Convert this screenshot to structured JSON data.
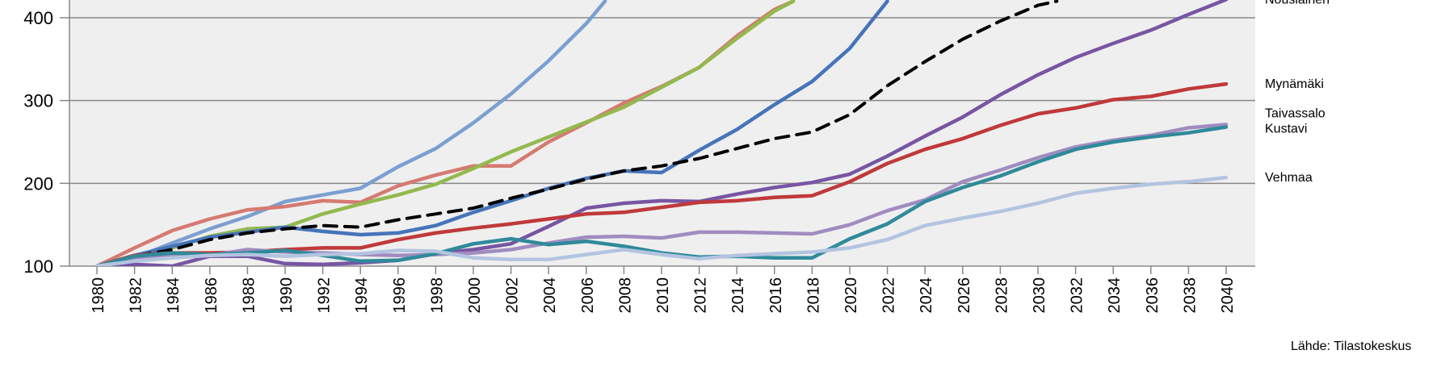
{
  "chart_data": {
    "type": "line",
    "xlim": [
      1980,
      2040
    ],
    "ylim": [
      100,
      420
    ],
    "y_ticks": [
      100,
      200,
      300,
      400
    ],
    "x_ticks": [
      "1980",
      "1982",
      "1984",
      "1986",
      "1988",
      "1990",
      "1992",
      "1994",
      "1996",
      "1998",
      "2000",
      "2002",
      "2004",
      "2006",
      "2008",
      "2010",
      "2012",
      "2014",
      "2016",
      "2018",
      "2020",
      "2022",
      "2024",
      "2026",
      "2028",
      "2030",
      "2032",
      "2034",
      "2036",
      "2038",
      "2040"
    ],
    "grid": true,
    "plot_background": "#efefef",
    "source": "Lähde: Tilastokeskus",
    "series": [
      {
        "name": "",
        "color": "#7b9fd0",
        "dash": false,
        "points": [
          [
            1980,
            100
          ],
          [
            1982,
            110
          ],
          [
            1984,
            128
          ],
          [
            1986,
            145
          ],
          [
            1988,
            160
          ],
          [
            1990,
            178
          ],
          [
            1992,
            186
          ],
          [
            1994,
            194
          ],
          [
            1996,
            220
          ],
          [
            1998,
            242
          ],
          [
            2000,
            273
          ],
          [
            2002,
            308
          ],
          [
            2004,
            348
          ],
          [
            2006,
            393
          ],
          [
            2007,
            420
          ]
        ]
      },
      {
        "name": "",
        "color": "#d57a72",
        "dash": false,
        "points": [
          [
            1980,
            100
          ],
          [
            1982,
            122
          ],
          [
            1984,
            143
          ],
          [
            1986,
            157
          ],
          [
            1988,
            168
          ],
          [
            1990,
            172
          ],
          [
            1992,
            179
          ],
          [
            1994,
            177
          ],
          [
            1996,
            197
          ],
          [
            1998,
            210
          ],
          [
            2000,
            221
          ],
          [
            2002,
            221
          ],
          [
            2004,
            250
          ],
          [
            2006,
            273
          ],
          [
            2008,
            297
          ],
          [
            2010,
            317
          ],
          [
            2012,
            340
          ],
          [
            2014,
            378
          ],
          [
            2016,
            410
          ],
          [
            2017,
            420
          ]
        ]
      },
      {
        "name": "",
        "color": "#93b94e",
        "dash": false,
        "points": [
          [
            1980,
            100
          ],
          [
            1982,
            112
          ],
          [
            1984,
            122
          ],
          [
            1986,
            136
          ],
          [
            1988,
            145
          ],
          [
            1990,
            147
          ],
          [
            1992,
            163
          ],
          [
            1994,
            175
          ],
          [
            1996,
            186
          ],
          [
            1998,
            199
          ],
          [
            2000,
            218
          ],
          [
            2002,
            238
          ],
          [
            2004,
            256
          ],
          [
            2006,
            274
          ],
          [
            2008,
            292
          ],
          [
            2010,
            316
          ],
          [
            2012,
            340
          ],
          [
            2014,
            375
          ],
          [
            2016,
            408
          ],
          [
            2017,
            420
          ]
        ]
      },
      {
        "name": "",
        "color": "#4674b9",
        "dash": false,
        "points": [
          [
            1980,
            100
          ],
          [
            1982,
            113
          ],
          [
            1984,
            124
          ],
          [
            1986,
            135
          ],
          [
            1988,
            141
          ],
          [
            1990,
            147
          ],
          [
            1992,
            142
          ],
          [
            1994,
            138
          ],
          [
            1996,
            140
          ],
          [
            1998,
            149
          ],
          [
            2000,
            165
          ],
          [
            2002,
            179
          ],
          [
            2004,
            194
          ],
          [
            2006,
            206
          ],
          [
            2008,
            215
          ],
          [
            2010,
            213
          ],
          [
            2012,
            240
          ],
          [
            2014,
            265
          ],
          [
            2016,
            295
          ],
          [
            2018,
            323
          ],
          [
            2020,
            363
          ],
          [
            2022,
            420
          ]
        ]
      },
      {
        "name": "",
        "color": "#000000",
        "dash": true,
        "points": [
          [
            1980,
            100
          ],
          [
            1982,
            112
          ],
          [
            1984,
            120
          ],
          [
            1986,
            132
          ],
          [
            1988,
            140
          ],
          [
            1990,
            145
          ],
          [
            1992,
            149
          ],
          [
            1994,
            147
          ],
          [
            1996,
            156
          ],
          [
            1998,
            163
          ],
          [
            2000,
            170
          ],
          [
            2002,
            182
          ],
          [
            2004,
            193
          ],
          [
            2006,
            205
          ],
          [
            2008,
            215
          ],
          [
            2010,
            221
          ],
          [
            2012,
            230
          ],
          [
            2014,
            242
          ],
          [
            2016,
            254
          ],
          [
            2018,
            262
          ],
          [
            2020,
            283
          ],
          [
            2022,
            318
          ],
          [
            2024,
            347
          ],
          [
            2026,
            374
          ],
          [
            2028,
            396
          ],
          [
            2030,
            415
          ],
          [
            2031,
            420
          ]
        ]
      },
      {
        "name": "Nousiainen",
        "color": "#7755a3",
        "dash": false,
        "points": [
          [
            1980,
            100
          ],
          [
            1982,
            102
          ],
          [
            1984,
            100
          ],
          [
            1986,
            112
          ],
          [
            1988,
            112
          ],
          [
            1990,
            103
          ],
          [
            1992,
            102
          ],
          [
            1994,
            104
          ],
          [
            1996,
            107
          ],
          [
            1998,
            115
          ],
          [
            2000,
            120
          ],
          [
            2002,
            127
          ],
          [
            2004,
            148
          ],
          [
            2006,
            170
          ],
          [
            2008,
            176
          ],
          [
            2010,
            179
          ],
          [
            2012,
            178
          ],
          [
            2014,
            187
          ],
          [
            2016,
            195
          ],
          [
            2018,
            201
          ],
          [
            2020,
            211
          ],
          [
            2022,
            233
          ],
          [
            2024,
            257
          ],
          [
            2026,
            280
          ],
          [
            2028,
            307
          ],
          [
            2030,
            331
          ],
          [
            2032,
            352
          ],
          [
            2034,
            369
          ],
          [
            2036,
            385
          ],
          [
            2038,
            404
          ],
          [
            2040,
            422
          ]
        ]
      },
      {
        "name": "Mynämäki",
        "color": "#c0393b",
        "dash": false,
        "points": [
          [
            1980,
            100
          ],
          [
            1982,
            113
          ],
          [
            1984,
            116
          ],
          [
            1986,
            116
          ],
          [
            1988,
            117
          ],
          [
            1990,
            120
          ],
          [
            1992,
            122
          ],
          [
            1994,
            122
          ],
          [
            1996,
            132
          ],
          [
            1998,
            140
          ],
          [
            2000,
            146
          ],
          [
            2002,
            151
          ],
          [
            2004,
            157
          ],
          [
            2006,
            163
          ],
          [
            2008,
            165
          ],
          [
            2010,
            171
          ],
          [
            2012,
            177
          ],
          [
            2014,
            179
          ],
          [
            2016,
            183
          ],
          [
            2018,
            185
          ],
          [
            2020,
            202
          ],
          [
            2022,
            224
          ],
          [
            2024,
            241
          ],
          [
            2026,
            254
          ],
          [
            2028,
            270
          ],
          [
            2030,
            284
          ],
          [
            2032,
            291
          ],
          [
            2034,
            301
          ],
          [
            2036,
            305
          ],
          [
            2038,
            314
          ],
          [
            2040,
            320
          ]
        ]
      },
      {
        "name": "Taivassalo",
        "color": "#a08cc0",
        "dash": false,
        "points": [
          [
            1980,
            100
          ],
          [
            1982,
            110
          ],
          [
            1984,
            112
          ],
          [
            1986,
            113
          ],
          [
            1988,
            120
          ],
          [
            1990,
            117
          ],
          [
            1992,
            116
          ],
          [
            1994,
            114
          ],
          [
            1996,
            113
          ],
          [
            1998,
            114
          ],
          [
            2000,
            116
          ],
          [
            2002,
            120
          ],
          [
            2004,
            128
          ],
          [
            2006,
            135
          ],
          [
            2008,
            136
          ],
          [
            2010,
            134
          ],
          [
            2012,
            141
          ],
          [
            2014,
            141
          ],
          [
            2016,
            140
          ],
          [
            2018,
            139
          ],
          [
            2020,
            150
          ],
          [
            2022,
            167
          ],
          [
            2024,
            180
          ],
          [
            2026,
            202
          ],
          [
            2028,
            216
          ],
          [
            2030,
            231
          ],
          [
            2032,
            244
          ],
          [
            2034,
            252
          ],
          [
            2036,
            258
          ],
          [
            2038,
            267
          ],
          [
            2040,
            271
          ]
        ]
      },
      {
        "name": "Kustavi",
        "color": "#2f8a9a",
        "dash": false,
        "points": [
          [
            1980,
            100
          ],
          [
            1982,
            112
          ],
          [
            1984,
            116
          ],
          [
            1986,
            114
          ],
          [
            1988,
            116
          ],
          [
            1990,
            119
          ],
          [
            1992,
            113
          ],
          [
            1994,
            106
          ],
          [
            1996,
            107
          ],
          [
            1998,
            115
          ],
          [
            2000,
            127
          ],
          [
            2002,
            133
          ],
          [
            2004,
            126
          ],
          [
            2006,
            130
          ],
          [
            2008,
            124
          ],
          [
            2010,
            116
          ],
          [
            2012,
            111
          ],
          [
            2014,
            112
          ],
          [
            2016,
            110
          ],
          [
            2018,
            110
          ],
          [
            2020,
            133
          ],
          [
            2022,
            151
          ],
          [
            2024,
            178
          ],
          [
            2026,
            195
          ],
          [
            2028,
            209
          ],
          [
            2030,
            226
          ],
          [
            2032,
            241
          ],
          [
            2034,
            250
          ],
          [
            2036,
            256
          ],
          [
            2038,
            261
          ],
          [
            2040,
            268
          ]
        ]
      },
      {
        "name": "Vehmaa",
        "color": "#b3c4e0",
        "dash": false,
        "points": [
          [
            1980,
            100
          ],
          [
            1982,
            106
          ],
          [
            1984,
            110
          ],
          [
            1986,
            113
          ],
          [
            1988,
            114
          ],
          [
            1990,
            112
          ],
          [
            1992,
            114
          ],
          [
            1994,
            115
          ],
          [
            1996,
            119
          ],
          [
            1998,
            118
          ],
          [
            2000,
            110
          ],
          [
            2002,
            108
          ],
          [
            2004,
            108
          ],
          [
            2006,
            114
          ],
          [
            2008,
            120
          ],
          [
            2010,
            114
          ],
          [
            2012,
            109
          ],
          [
            2014,
            113
          ],
          [
            2016,
            115
          ],
          [
            2018,
            117
          ],
          [
            2020,
            122
          ],
          [
            2022,
            132
          ],
          [
            2024,
            149
          ],
          [
            2026,
            158
          ],
          [
            2028,
            166
          ],
          [
            2030,
            176
          ],
          [
            2032,
            188
          ],
          [
            2034,
            194
          ],
          [
            2036,
            199
          ],
          [
            2038,
            202
          ],
          [
            2040,
            207
          ]
        ]
      }
    ]
  }
}
